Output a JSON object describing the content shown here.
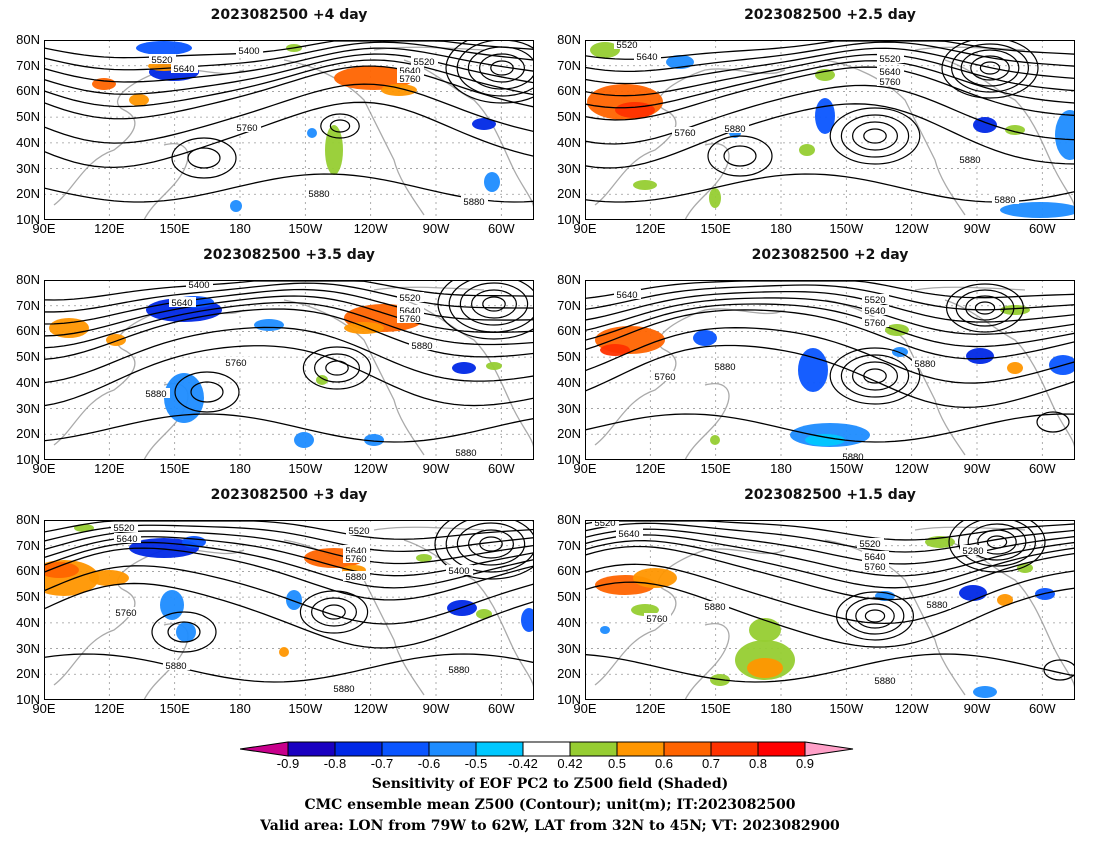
{
  "panels": [
    {
      "title": "2023082500 +4 day",
      "contour_labels": [
        "5400",
        "5520",
        "5640",
        "5520",
        "5640",
        "5760",
        "5760",
        "5880",
        "5880"
      ]
    },
    {
      "title": "2023082500 +2.5 day",
      "contour_labels": [
        "5520",
        "5640",
        "5520",
        "5640",
        "5760",
        "5760",
        "5880",
        "5880",
        "5880"
      ]
    },
    {
      "title": "2023082500 +3.5 day",
      "contour_labels": [
        "5400",
        "5640",
        "5520",
        "5640",
        "5760",
        "5880",
        "5760",
        "5880",
        "5880"
      ]
    },
    {
      "title": "2023082500 +2 day",
      "contour_labels": [
        "5640",
        "5520",
        "5640",
        "5760",
        "5760",
        "5880",
        "5880",
        "5880"
      ]
    },
    {
      "title": "2023082500 +3 day",
      "contour_labels": [
        "5520",
        "5640",
        "5520",
        "5640",
        "5760",
        "5880",
        "5400",
        "5760",
        "5880",
        "5880",
        "5880"
      ]
    },
    {
      "title": "2023082500 +1.5 day",
      "contour_labels": [
        "5520",
        "5640",
        "5520",
        "5640",
        "5760",
        "5280",
        "5880",
        "5880",
        "5760",
        "5880"
      ]
    }
  ],
  "lat_labels": [
    "80N",
    "70N",
    "60N",
    "50N",
    "40N",
    "30N",
    "20N",
    "10N"
  ],
  "lon_labels": [
    "90E",
    "120E",
    "150E",
    "180",
    "150W",
    "120W",
    "90W",
    "60W"
  ],
  "colorbar": {
    "labels": [
      "-0.9",
      "-0.8",
      "-0.7",
      "-0.6",
      "-0.5",
      "-0.42",
      "0.42",
      "0.5",
      "0.6",
      "0.7",
      "0.8",
      "0.9"
    ],
    "colors": [
      "#c8008c",
      "#1a00c0",
      "#0028e6",
      "#0a55ff",
      "#1e8cff",
      "#00c8ff",
      "#ffffff",
      "#96cd32",
      "#ff9600",
      "#ff6400",
      "#ff3200",
      "#ff0000",
      "#ffa0c8"
    ]
  },
  "caption": {
    "line1": "Sensitivity of EOF PC2 to Z500 field (Shaded)",
    "line2": "CMC ensemble mean Z500 (Contour); unit(m); IT:2023082500",
    "line3": "Valid area: LON from 79W to 62W, LAT from 32N to 45N; VT: 2023082900"
  }
}
